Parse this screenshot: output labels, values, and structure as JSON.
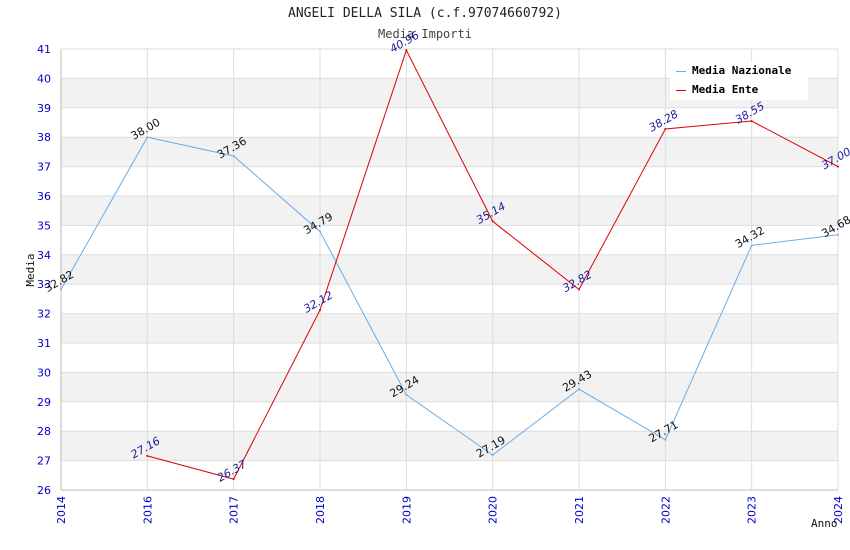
{
  "chart_data": {
    "type": "line",
    "title": "ANGELI DELLA SILA (c.f.97074660792)",
    "subtitle": "Media Importi",
    "xlabel": "Anno",
    "ylabel": "Media",
    "x": [
      "2014",
      "2016",
      "2017",
      "2018",
      "2019",
      "2020",
      "2021",
      "2022",
      "2023",
      "2024"
    ],
    "ylim": [
      26,
      41
    ],
    "yticks": [
      26,
      27,
      28,
      29,
      30,
      31,
      32,
      33,
      34,
      35,
      36,
      37,
      38,
      39,
      40,
      41
    ],
    "grid": true,
    "legend_position": "top-right",
    "series": [
      {
        "name": "Media Nazionale",
        "color": "#6aaee8",
        "values": [
          32.82,
          38.0,
          37.36,
          34.79,
          29.24,
          27.19,
          29.43,
          27.71,
          34.32,
          34.68
        ],
        "labels": [
          "32.82",
          "38.00",
          "37.36",
          "34.79",
          "29.24",
          "27.19",
          "29.43",
          "27.71",
          "34.32",
          "34.68"
        ]
      },
      {
        "name": "Media Ente",
        "color": "#dd0000",
        "values": [
          null,
          27.16,
          26.37,
          32.12,
          40.96,
          35.14,
          32.82,
          38.28,
          38.55,
          37.0
        ],
        "labels": [
          null,
          "27.16",
          "26.37",
          "32.12",
          "40.96",
          "35.14",
          "32.82",
          "38.28",
          "38.55",
          "37.00"
        ]
      }
    ]
  },
  "colors": {
    "band_alt": "#f2f2f2",
    "gridline": "#dddddd",
    "tick_text": "#0000cc"
  }
}
